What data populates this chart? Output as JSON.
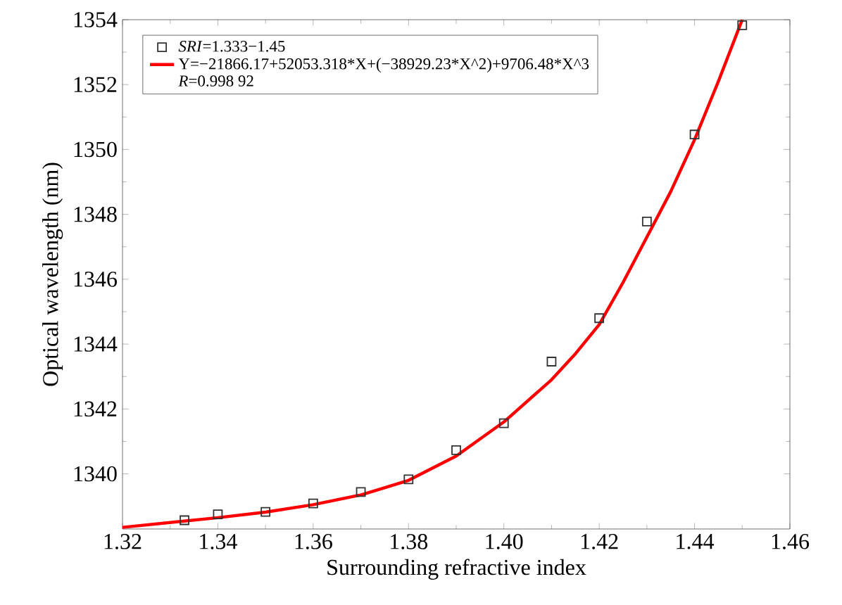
{
  "chart_data": {
    "type": "scatter",
    "xlabel": "Surrounding refractive index",
    "ylabel": "Optical wavelength (nm)",
    "xlim": [
      1.32,
      1.46
    ],
    "ylim": [
      1338.3,
      1354
    ],
    "xticks": [
      1.32,
      1.34,
      1.36,
      1.38,
      {
        "value": 1.4,
        "label": "1.40"
      },
      1.42,
      1.44,
      1.46
    ],
    "yticks": [
      1340,
      1342,
      1344,
      1346,
      1348,
      1350,
      1352,
      1354
    ],
    "grid": false,
    "legend": "top left",
    "series": [
      {
        "name": "*SRI*=1.333−1.45",
        "marker": "square",
        "color": "#333333",
        "x": [
          1.333,
          1.34,
          1.35,
          1.36,
          1.37,
          1.38,
          1.39,
          1.4,
          1.41,
          1.42,
          1.43,
          1.44,
          1.45
        ],
        "values": [
          1338.57,
          1338.75,
          1338.83,
          1339.09,
          1339.44,
          1339.83,
          1340.73,
          1341.56,
          1343.46,
          1344.8,
          1347.78,
          1350.46,
          1353.83
        ]
      },
      {
        "name": "Y=−21866.17+52053.318*X+(−38929.23*X^2)+9706.48*X^3",
        "type": "line",
        "marker": "none",
        "line_style": "solid",
        "color": "#ff0000",
        "x": [
          1.32,
          1.33,
          1.34,
          1.35,
          1.36,
          1.37,
          1.38,
          1.39,
          1.4,
          1.41,
          1.415,
          1.42,
          1.425,
          1.43,
          1.435,
          1.44,
          1.445,
          1.45
        ],
        "values": [
          1338.35,
          1338.5,
          1338.65,
          1338.82,
          1339.05,
          1339.35,
          1339.8,
          1340.55,
          1341.6,
          1342.9,
          1343.7,
          1344.6,
          1345.9,
          1347.3,
          1348.7,
          1350.3,
          1352.1,
          1354.0
        ]
      }
    ],
    "annotations": [
      "*R*=0.998 92"
    ]
  }
}
